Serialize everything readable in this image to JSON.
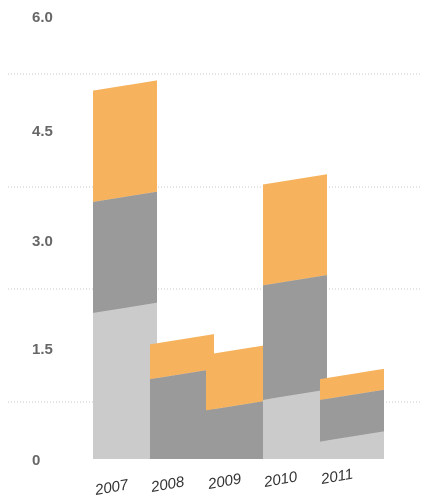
{
  "chart_data": {
    "type": "bar",
    "stacked": true,
    "categories": [
      "2007",
      "2008",
      "2009",
      "2010",
      "2011"
    ],
    "series": [
      {
        "values": [
          2.1,
          0.0,
          0.0,
          0.85,
          0.25
        ]
      },
      {
        "values": [
          1.6,
          1.15,
          0.7,
          1.65,
          0.6
        ]
      },
      {
        "values": [
          1.6,
          0.5,
          0.8,
          1.45,
          0.3
        ]
      }
    ],
    "ylim": [
      0,
      6.0
    ],
    "yticks": [
      {
        "label": "6.0",
        "value": 6.0
      },
      {
        "label": "4.5",
        "value": 4.5
      },
      {
        "label": "3.0",
        "value": 3.0
      },
      {
        "label": "1.5",
        "value": 1.5
      },
      {
        "label": "0",
        "value": 0
      }
    ],
    "grid": true,
    "colors": [
      "#cbcbcb",
      "#9a9a9a",
      "#f6b25c"
    ],
    "bar_effect": "skewed 3D slant rising to the right",
    "xtick_style": "italic, rotated"
  }
}
